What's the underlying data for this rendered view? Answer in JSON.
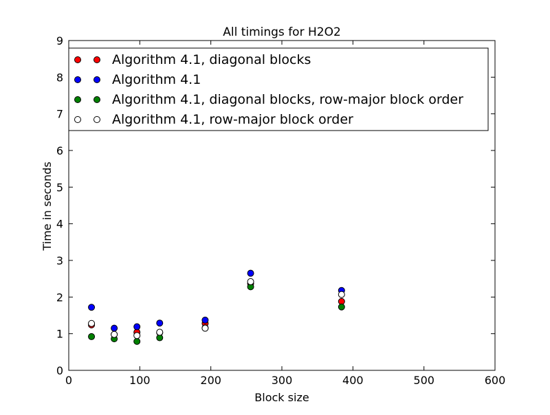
{
  "chart_data": {
    "type": "scatter",
    "title": "All timings for H2O2",
    "xlabel": "Block size",
    "ylabel": "Time in seconds",
    "xlim": [
      0,
      600
    ],
    "ylim": [
      0,
      9
    ],
    "xticks": [
      0,
      100,
      200,
      300,
      400,
      500,
      600
    ],
    "yticks": [
      0,
      1,
      2,
      3,
      4,
      5,
      6,
      7,
      8,
      9
    ],
    "grid": false,
    "legend_position": "top",
    "series": [
      {
        "name": "Algorithm 4.1, diagonal blocks",
        "color": "#ff0000",
        "points": [
          [
            32,
            1.24
          ],
          [
            64,
            0.98
          ],
          [
            96,
            1.04
          ],
          [
            128,
            1.03
          ],
          [
            192,
            1.28
          ],
          [
            256,
            2.37
          ],
          [
            384,
            1.88
          ]
        ]
      },
      {
        "name": "Algorithm 4.1",
        "color": "#0000ff",
        "points": [
          [
            32,
            1.72
          ],
          [
            64,
            1.15
          ],
          [
            96,
            1.19
          ],
          [
            128,
            1.29
          ],
          [
            192,
            1.37
          ],
          [
            256,
            2.65
          ],
          [
            384,
            2.18
          ]
        ]
      },
      {
        "name": "Algorithm 4.1, diagonal blocks, row-major block order",
        "color": "#008000",
        "points": [
          [
            32,
            0.92
          ],
          [
            64,
            0.86
          ],
          [
            96,
            0.79
          ],
          [
            128,
            0.89
          ],
          [
            192,
            1.16
          ],
          [
            256,
            2.28
          ],
          [
            384,
            1.73
          ]
        ]
      },
      {
        "name": "Algorithm 4.1, row-major block order",
        "color": "#ffffff",
        "points": [
          [
            32,
            1.28
          ],
          [
            64,
            0.98
          ],
          [
            96,
            0.95
          ],
          [
            128,
            1.04
          ],
          [
            192,
            1.15
          ],
          [
            256,
            2.42
          ],
          [
            384,
            2.07
          ]
        ]
      }
    ]
  }
}
